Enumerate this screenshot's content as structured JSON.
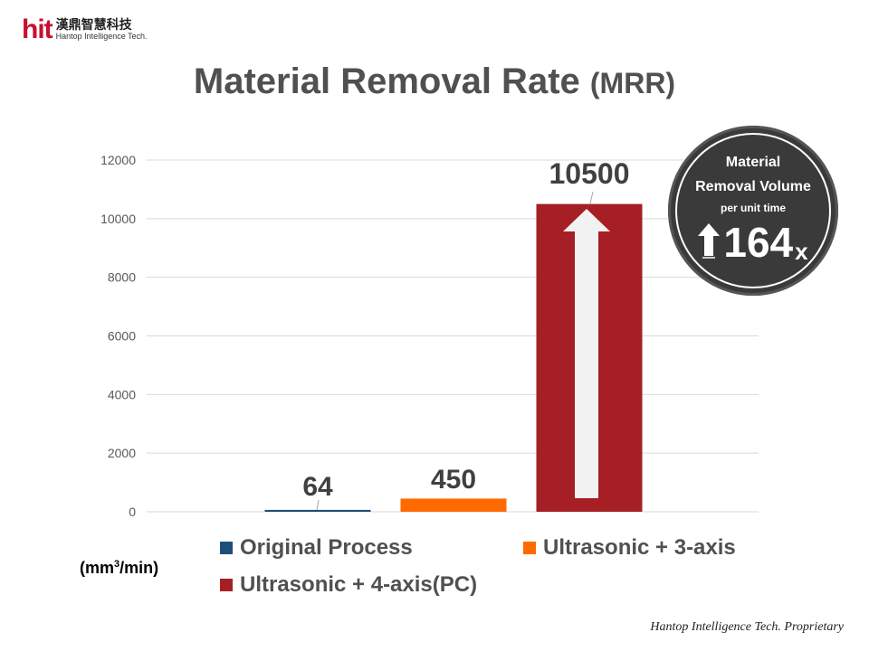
{
  "logo": {
    "mark": "hit",
    "cn": "漢鼎智慧科技",
    "en": "Hantop Intelligence Tech."
  },
  "title": {
    "main": "Material Removal Rate",
    "sub": "(MRR)"
  },
  "badge": {
    "line1": "Material",
    "line2": "Removal Volume",
    "line3": "per unit time",
    "multiplier": "164",
    "multiplier_suffix": "x",
    "icon": "up-arrow-icon"
  },
  "unit_label": {
    "prefix": "(mm",
    "sup": "3",
    "suffix": "/min)"
  },
  "footer": "Hantop Intelligence Tech. Proprietary",
  "chart_data": {
    "type": "bar",
    "title": "Material Removal Rate (MRR)",
    "ylabel": "(mm3/min)",
    "ylim": [
      0,
      12000
    ],
    "yticks": [
      "0",
      "2000",
      "4000",
      "6000",
      "8000",
      "10000",
      "12000"
    ],
    "grid": true,
    "legend_position": "bottom",
    "series": [
      {
        "name": "Original Process",
        "value": 64,
        "label": "64",
        "color": "#1f4e79"
      },
      {
        "name": "Ultrasonic + 3-axis",
        "value": 450,
        "label": "450",
        "color": "#ff6a00"
      },
      {
        "name": "Ultrasonic + 4-axis(PC)",
        "value": 10500,
        "label": "10500",
        "color": "#a51f24"
      }
    ]
  }
}
